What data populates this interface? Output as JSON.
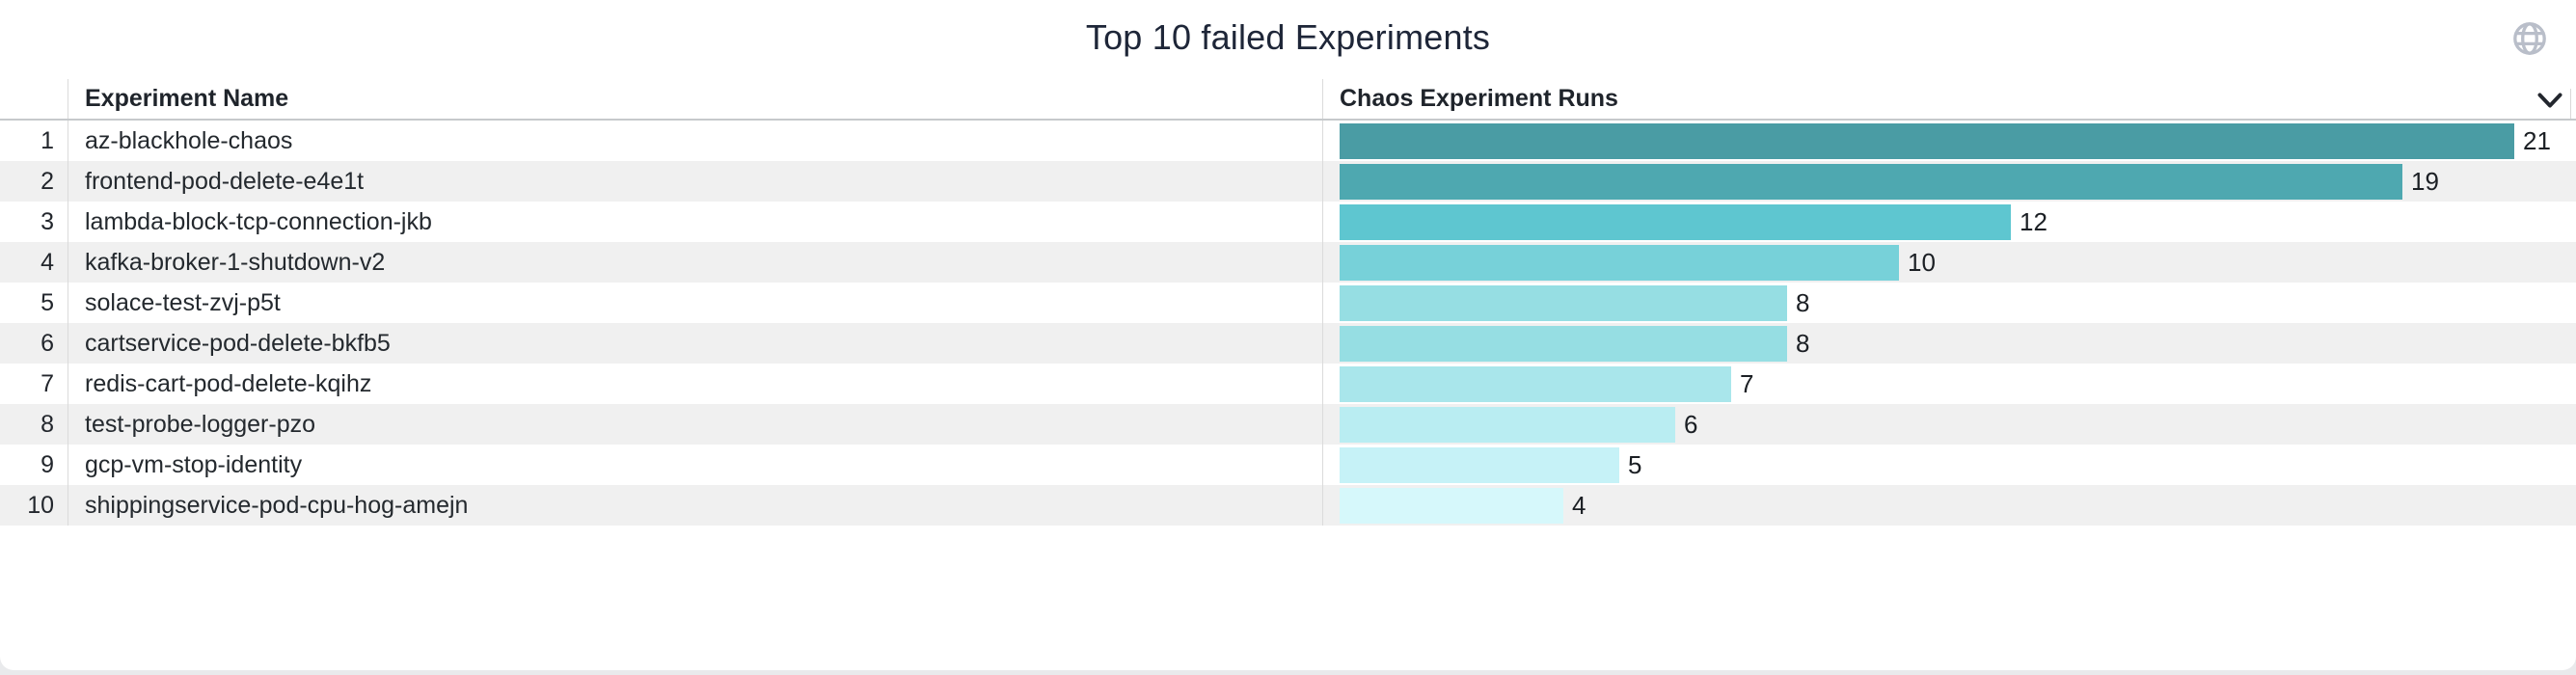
{
  "panel": {
    "title": "Top 10 failed Experiments"
  },
  "icons": {
    "globe": "globe-icon",
    "chevron": "chevron-down-icon",
    "globe_color": "#b9bec9",
    "chevron_color": "#23272e"
  },
  "table": {
    "columns": [
      "Experiment Name",
      "Chaos Experiment Runs"
    ],
    "stripe_color": "#f0f0f0"
  },
  "chart_data": {
    "type": "bar",
    "orientation": "horizontal",
    "title": "Top 10 failed Experiments",
    "xlabel": "Chaos Experiment Runs",
    "ylabel": "Experiment Name",
    "xlim": [
      0,
      21
    ],
    "grid": false,
    "legend": false,
    "categories": [
      "az-blackhole-chaos",
      "frontend-pod-delete-e4e1t",
      "lambda-block-tcp-connection-jkb",
      "kafka-broker-1-shutdown-v2",
      "solace-test-zvj-p5t",
      "cartservice-pod-delete-bkfb5",
      "redis-cart-pod-delete-kqihz",
      "test-probe-logger-pzo",
      "gcp-vm-stop-identity",
      "shippingservice-pod-cpu-hog-amejn"
    ],
    "values": [
      21,
      19,
      12,
      10,
      8,
      8,
      7,
      6,
      5,
      4
    ],
    "color_scale": {
      "min": "#d6f8fb",
      "max": "#4a9ca4"
    },
    "rows": [
      {
        "rank": "1",
        "name": "az-blackhole-chaos",
        "value": 21,
        "color": "#4a9ca4"
      },
      {
        "rank": "2",
        "name": "frontend-pod-delete-e4e1t",
        "value": 19,
        "color": "#4ea8b0"
      },
      {
        "rank": "3",
        "name": "lambda-block-tcp-connection-jkb",
        "value": 12,
        "color": "#5ec6d0"
      },
      {
        "rank": "4",
        "name": "kafka-broker-1-shutdown-v2",
        "value": 10,
        "color": "#77d1d9"
      },
      {
        "rank": "5",
        "name": "solace-test-zvj-p5t",
        "value": 8,
        "color": "#96dee3"
      },
      {
        "rank": "6",
        "name": "cartservice-pod-delete-bkfb5",
        "value": 8,
        "color": "#96dee3"
      },
      {
        "rank": "7",
        "name": "redis-cart-pod-delete-kqihz",
        "value": 7,
        "color": "#a9e6eb"
      },
      {
        "rank": "8",
        "name": "test-probe-logger-pzo",
        "value": 6,
        "color": "#b9edf2"
      },
      {
        "rank": "9",
        "name": "gcp-vm-stop-identity",
        "value": 5,
        "color": "#c6f2f7"
      },
      {
        "rank": "10",
        "name": "shippingservice-pod-cpu-hog-amejn",
        "value": 4,
        "color": "#d6f8fb"
      }
    ]
  }
}
